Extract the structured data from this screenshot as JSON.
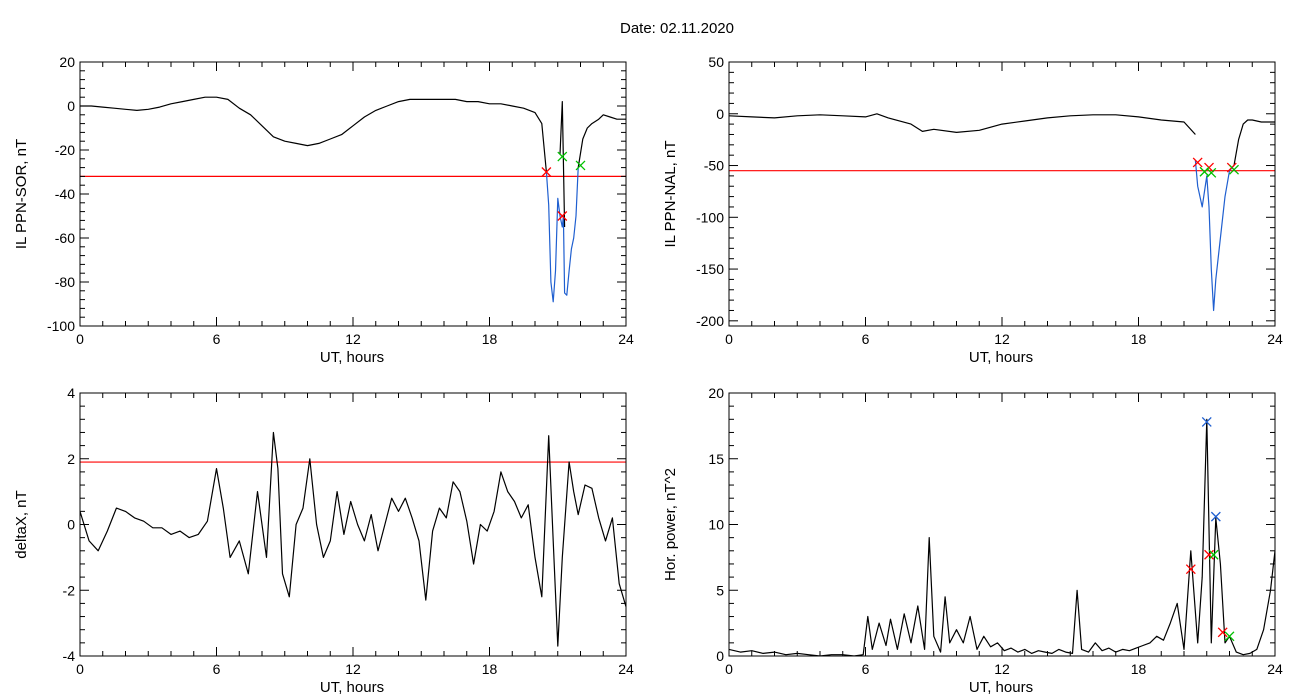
{
  "figure": {
    "title": "Date:  02.11.2020"
  },
  "chart_data": [
    {
      "type": "line",
      "xlabel": "UT, hours",
      "ylabel": "IL PPN-SOR, nT",
      "xlim": [
        0,
        24
      ],
      "ylim": [
        -100,
        20
      ],
      "xticks": [
        0,
        6,
        12,
        18,
        24
      ],
      "yticks": [
        -100,
        -80,
        -60,
        -40,
        -20,
        0,
        20
      ],
      "grid": false,
      "threshold": {
        "y": -32,
        "color": "#ff0000"
      },
      "series": [
        {
          "color": "#000000",
          "x": [
            0,
            0.5,
            1,
            1.5,
            2,
            2.5,
            3,
            3.5,
            4,
            4.5,
            5,
            5.5,
            6,
            6.5,
            7,
            7.5,
            8,
            8.5,
            9,
            9.5,
            10,
            10.5,
            11,
            11.5,
            12,
            12.5,
            13,
            13.5,
            14,
            14.5,
            15,
            15.5,
            16,
            16.5,
            17,
            17.5,
            18,
            18.5,
            19,
            19.5,
            20,
            20.3,
            20.5
          ],
          "y": [
            0,
            0,
            -0.5,
            -1,
            -1.5,
            -2,
            -1.5,
            -0.5,
            1,
            2,
            3,
            4,
            4,
            3,
            -1,
            -4,
            -9,
            -14,
            -16,
            -17,
            -18,
            -17,
            -15,
            -13,
            -9,
            -5,
            -2,
            0,
            2,
            3,
            3,
            3,
            3,
            3,
            2,
            2,
            1,
            1,
            0,
            -1,
            -3,
            -8,
            -30
          ]
        },
        {
          "color": "#1f5fd0",
          "x": [
            20.5,
            20.6,
            20.7,
            20.8,
            20.9,
            21.0,
            21.1,
            21.2,
            21.25,
            21.3,
            21.4,
            21.5,
            21.6,
            21.7,
            21.8,
            21.9
          ],
          "y": [
            -30,
            -45,
            -80,
            -89,
            -75,
            -42,
            -50,
            -55,
            -50,
            -85,
            -86,
            -75,
            -65,
            -60,
            -50,
            -28
          ]
        },
        {
          "color": "#000000",
          "x": [
            21.1,
            21.2,
            21.3
          ],
          "y": [
            -22,
            2,
            -55
          ]
        },
        {
          "color": "#000000",
          "x": [
            21.9,
            22.1,
            22.3,
            22.5,
            22.8,
            23.0,
            23.3,
            23.6,
            24.0
          ],
          "y": [
            -28,
            -15,
            -10,
            -8,
            -6,
            -4,
            -5,
            -6,
            -6
          ]
        }
      ],
      "markers": [
        {
          "x": 20.5,
          "y": -30,
          "color": "#ff0000"
        },
        {
          "x": 21.2,
          "y": -50,
          "color": "#ff0000"
        },
        {
          "x": 21.2,
          "y": -23,
          "color": "#00c000"
        },
        {
          "x": 22.0,
          "y": -27,
          "color": "#00c000"
        }
      ]
    },
    {
      "type": "line",
      "xlabel": "UT, hours",
      "ylabel": "IL PPN-NAL, nT",
      "xlim": [
        0,
        24
      ],
      "ylim": [
        -205,
        50
      ],
      "xticks": [
        0,
        6,
        12,
        18,
        24
      ],
      "yticks": [
        -200,
        -150,
        -100,
        -50,
        0,
        50
      ],
      "grid": false,
      "threshold": {
        "y": -55,
        "color": "#ff0000"
      },
      "series": [
        {
          "color": "#000000",
          "x": [
            0,
            1,
            2,
            3,
            4,
            5,
            6,
            6.5,
            7,
            8,
            8.5,
            9,
            10,
            11,
            12,
            13,
            14,
            15,
            16,
            17,
            18,
            19,
            20,
            20.5
          ],
          "y": [
            -2,
            -3,
            -4,
            -2,
            -1,
            -2,
            -3,
            0,
            -4,
            -10,
            -17,
            -15,
            -18,
            -16,
            -10,
            -7,
            -4,
            -2,
            -1,
            -1,
            -3,
            -6,
            -8,
            -20
          ]
        },
        {
          "color": "#1f5fd0",
          "x": [
            20.5,
            20.6,
            20.8,
            21.0,
            21.1,
            21.2,
            21.3,
            21.4,
            21.5,
            21.6,
            21.8,
            22.0,
            22.2
          ],
          "y": [
            -45,
            -70,
            -90,
            -60,
            -90,
            -150,
            -190,
            -160,
            -140,
            -120,
            -80,
            -55,
            -50
          ]
        },
        {
          "color": "#000000",
          "x": [
            22.2,
            22.4,
            22.6,
            22.8,
            23.0,
            23.4,
            24.0
          ],
          "y": [
            -50,
            -25,
            -10,
            -6,
            -6,
            -8,
            -8
          ]
        }
      ],
      "markers": [
        {
          "x": 20.6,
          "y": -47,
          "color": "#ff0000"
        },
        {
          "x": 21.1,
          "y": -52,
          "color": "#ff0000"
        },
        {
          "x": 20.9,
          "y": -56,
          "color": "#00c000"
        },
        {
          "x": 21.2,
          "y": -57,
          "color": "#00c000"
        },
        {
          "x": 22.1,
          "y": -52,
          "color": "#ff0000"
        },
        {
          "x": 22.2,
          "y": -54,
          "color": "#00c000"
        }
      ]
    },
    {
      "type": "line",
      "xlabel": "UT, hours",
      "ylabel": "deltaX, nT",
      "xlim": [
        0,
        24
      ],
      "ylim": [
        -4,
        4
      ],
      "xticks": [
        0,
        6,
        12,
        18,
        24
      ],
      "yticks": [
        -4,
        -2,
        0,
        2,
        4
      ],
      "grid": false,
      "threshold": {
        "y": 1.9,
        "color": "#ff0000"
      },
      "series": [
        {
          "color": "#000000",
          "x": [
            0,
            0.4,
            0.8,
            1.2,
            1.6,
            2.0,
            2.4,
            2.8,
            3.2,
            3.6,
            4.0,
            4.4,
            4.8,
            5.2,
            5.6,
            6.0,
            6.3,
            6.6,
            7.0,
            7.4,
            7.8,
            8.2,
            8.5,
            8.7,
            8.9,
            9.2,
            9.5,
            9.8,
            10.1,
            10.4,
            10.7,
            11.0,
            11.3,
            11.6,
            11.9,
            12.2,
            12.5,
            12.8,
            13.1,
            13.4,
            13.7,
            14.0,
            14.3,
            14.6,
            14.9,
            15.2,
            15.5,
            15.8,
            16.1,
            16.4,
            16.7,
            17.0,
            17.3,
            17.6,
            17.9,
            18.2,
            18.5,
            18.8,
            19.1,
            19.4,
            19.7,
            20.0,
            20.3,
            20.6,
            20.8,
            21.0,
            21.2,
            21.5,
            21.7,
            21.9,
            22.2,
            22.5,
            22.8,
            23.1,
            23.4,
            23.7,
            24.0
          ],
          "y": [
            0.4,
            -0.5,
            -0.8,
            -0.2,
            0.5,
            0.4,
            0.2,
            0.1,
            -0.1,
            -0.1,
            -0.3,
            -0.2,
            -0.4,
            -0.3,
            0.1,
            1.7,
            0.5,
            -1.0,
            -0.5,
            -1.5,
            1.0,
            -1.0,
            2.8,
            1.7,
            -1.5,
            -2.2,
            0.0,
            0.5,
            2.0,
            0.0,
            -1.0,
            -0.5,
            1.0,
            -0.3,
            0.7,
            0.0,
            -0.5,
            0.3,
            -0.8,
            0.0,
            0.8,
            0.4,
            0.8,
            0.2,
            -0.5,
            -2.3,
            -0.2,
            0.5,
            0.2,
            1.3,
            1.0,
            0.1,
            -1.2,
            0.0,
            -0.2,
            0.4,
            1.6,
            1.0,
            0.7,
            0.2,
            0.6,
            -1.0,
            -2.2,
            2.7,
            -0.5,
            -3.7,
            -1.0,
            1.9,
            1.0,
            0.3,
            1.2,
            1.1,
            0.2,
            -0.5,
            0.2,
            -1.8,
            -2.5
          ]
        }
      ],
      "markers": []
    },
    {
      "type": "line",
      "xlabel": "UT, hours",
      "ylabel": "Hor. power, nT^2",
      "xlim": [
        0,
        24
      ],
      "ylim": [
        0,
        20
      ],
      "xticks": [
        0,
        6,
        12,
        18,
        24
      ],
      "yticks": [
        0,
        5,
        10,
        15,
        20
      ],
      "grid": false,
      "threshold": null,
      "series": [
        {
          "color": "#000000",
          "x": [
            0,
            0.5,
            1,
            1.5,
            2,
            2.5,
            3,
            3.5,
            4,
            4.5,
            5,
            5.5,
            5.9,
            6.1,
            6.3,
            6.6,
            6.9,
            7.1,
            7.4,
            7.7,
            8.0,
            8.3,
            8.6,
            8.8,
            9.0,
            9.3,
            9.5,
            9.7,
            10.0,
            10.3,
            10.6,
            10.9,
            11.2,
            11.5,
            11.8,
            12.1,
            12.4,
            12.7,
            13.0,
            13.3,
            13.6,
            13.9,
            14.2,
            14.5,
            14.8,
            15.1,
            15.3,
            15.5,
            15.8,
            16.1,
            16.4,
            16.7,
            17.0,
            17.3,
            17.6,
            17.9,
            18.2,
            18.5,
            18.8,
            19.1,
            19.4,
            19.7,
            20.0,
            20.3,
            20.6,
            20.8,
            21.0,
            21.2,
            21.4,
            21.6,
            21.8,
            22.0,
            22.3,
            22.6,
            22.9,
            23.2,
            23.5,
            23.8,
            24.0
          ],
          "y": [
            0.5,
            0.3,
            0.4,
            0.2,
            0.3,
            0.1,
            0.2,
            0.1,
            0.0,
            0.1,
            0.1,
            0.0,
            0.1,
            3.0,
            0.5,
            2.5,
            0.8,
            2.8,
            0.5,
            3.2,
            1.0,
            3.8,
            0.5,
            9.0,
            1.5,
            0.3,
            4.5,
            1.0,
            2.0,
            1.0,
            3.0,
            0.5,
            1.5,
            0.7,
            1.0,
            0.4,
            0.6,
            0.3,
            0.5,
            0.2,
            0.4,
            0.3,
            0.2,
            0.5,
            0.3,
            0.2,
            5.0,
            0.5,
            0.3,
            1.0,
            0.4,
            0.6,
            0.3,
            0.5,
            0.4,
            0.6,
            0.8,
            1.0,
            1.5,
            1.2,
            2.5,
            4.0,
            0.5,
            8.0,
            1.0,
            6.0,
            18.0,
            1.0,
            10.5,
            7.0,
            1.0,
            1.5,
            0.3,
            0.1,
            0.2,
            0.5,
            2.0,
            5.0,
            8.0
          ]
        }
      ],
      "markers": [
        {
          "x": 21.0,
          "y": 17.8,
          "color": "#1f5fd0"
        },
        {
          "x": 21.4,
          "y": 10.6,
          "color": "#1f5fd0"
        },
        {
          "x": 20.3,
          "y": 6.6,
          "color": "#ff0000"
        },
        {
          "x": 21.1,
          "y": 7.7,
          "color": "#ff0000"
        },
        {
          "x": 21.3,
          "y": 7.7,
          "color": "#00c000"
        },
        {
          "x": 22.0,
          "y": 1.5,
          "color": "#00c000"
        },
        {
          "x": 21.7,
          "y": 1.8,
          "color": "#ff0000"
        }
      ]
    }
  ]
}
